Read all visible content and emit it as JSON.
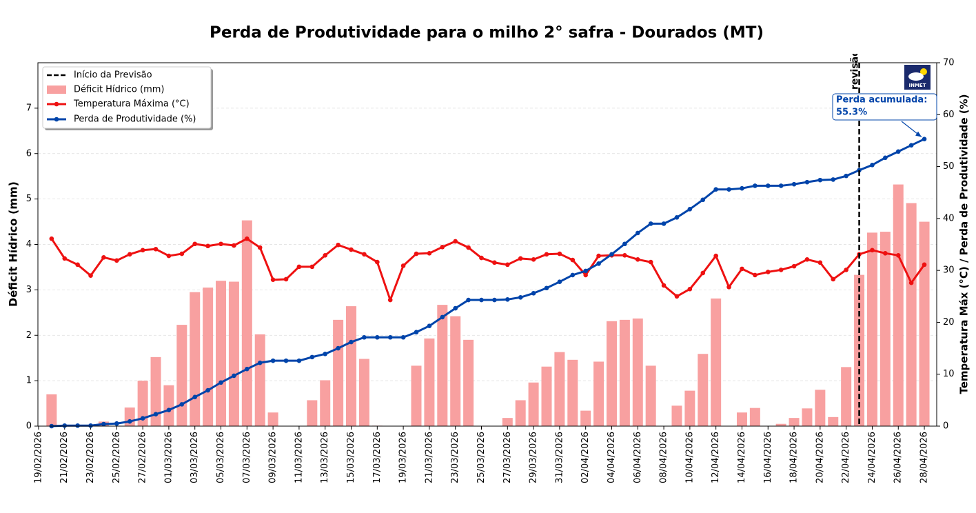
{
  "chart_data": {
    "type": "combo",
    "title": "Perda de Produtividade para o milho 2° safra - Dourados (MT)",
    "y_label": "Déficit Hídrico (mm)",
    "y2_label": "Temperatura Máx (°C) / Perda de Produtividade (%)",
    "categories": [
      "19/02/2026",
      null,
      "21/02/2026",
      null,
      "23/02/2026",
      null,
      "25/02/2026",
      null,
      "27/02/2026",
      null,
      "01/03/2026",
      null,
      "03/03/2026",
      null,
      "05/03/2026",
      null,
      "07/03/2026",
      null,
      "09/03/2026",
      null,
      "11/03/2026",
      null,
      "13/03/2026",
      null,
      "15/03/2026",
      null,
      "17/03/2026",
      null,
      "19/03/2026",
      null,
      "21/03/2026",
      null,
      "23/03/2026",
      null,
      "25/03/2026",
      null,
      "27/03/2026",
      null,
      "29/03/2026",
      null,
      "31/03/2026",
      null,
      "02/04/2026",
      null,
      "04/04/2026",
      null,
      "06/04/2026",
      null,
      "08/04/2026",
      null,
      "10/04/2026",
      null,
      "12/04/2026",
      null,
      "14/04/2026",
      null,
      "16/04/2026",
      null,
      "18/04/2026",
      null,
      "20/04/2026",
      null,
      "22/04/2026",
      null,
      "24/04/2026",
      null,
      "26/04/2026",
      null,
      "28/04/2026"
    ],
    "series": [
      {
        "name": "Déficit Hídrico (mm)",
        "type": "bar",
        "axis": "y",
        "color": "#f8a0a0",
        "values": [
          null,
          0.7,
          0,
          0,
          0.02,
          0.1,
          0,
          0.41,
          1.0,
          1.52,
          0.9,
          2.23,
          2.95,
          3.05,
          3.2,
          3.18,
          4.53,
          2.02,
          0.3,
          0,
          0,
          0.57,
          1.01,
          2.34,
          2.64,
          1.48,
          0.01,
          0,
          0,
          1.33,
          1.93,
          2.67,
          2.42,
          1.9,
          0,
          0,
          0.18,
          0.57,
          0.96,
          1.31,
          1.63,
          1.46,
          0.34,
          1.42,
          2.31,
          2.34,
          2.37,
          1.33,
          0,
          0.45,
          0.78,
          1.59,
          2.81,
          0,
          0.3,
          0.4,
          0,
          0.05,
          0.18,
          0.39,
          0.8,
          0.2,
          1.3,
          3.33,
          4.26,
          4.28,
          5.32,
          4.91,
          4.5
        ]
      },
      {
        "name": "Temperatura Máxima (°C)",
        "type": "line",
        "axis": "y2",
        "color": "#ee1111",
        "values": [
          null,
          36.1,
          32.3,
          31.1,
          29.0,
          32.5,
          31.9,
          33.1,
          33.9,
          34.1,
          32.8,
          33.2,
          35.1,
          34.7,
          35.1,
          34.8,
          36.1,
          34.4,
          28.2,
          28.3,
          30.7,
          30.7,
          32.9,
          34.9,
          34.0,
          33.1,
          31.6,
          24.3,
          30.9,
          33.2,
          33.3,
          34.5,
          35.6,
          34.4,
          32.4,
          31.5,
          31.1,
          32.3,
          32.1,
          33.1,
          33.2,
          32.0,
          29.1,
          32.8,
          32.9,
          32.9,
          32.1,
          31.6,
          27.1,
          25.0,
          26.4,
          29.5,
          32.8,
          26.8,
          30.3,
          29.1,
          29.7,
          30.1,
          30.8,
          32.1,
          31.5,
          28.3,
          30.1,
          33.1,
          33.9,
          33.3,
          32.9,
          27.6,
          31.1
        ]
      },
      {
        "name": "Perda de Produtividade (%)",
        "type": "line",
        "axis": "y2",
        "color": "#0044aa",
        "values": [
          null,
          0.0,
          0.1,
          0.1,
          0.1,
          0.4,
          0.5,
          0.9,
          1.5,
          2.3,
          3.1,
          4.2,
          5.6,
          6.9,
          8.4,
          9.7,
          11.0,
          12.2,
          12.6,
          12.6,
          12.6,
          13.3,
          13.9,
          15.0,
          16.2,
          17.1,
          17.1,
          17.1,
          17.1,
          18.1,
          19.3,
          21.0,
          22.7,
          24.3,
          24.3,
          24.3,
          24.4,
          24.8,
          25.6,
          26.6,
          27.8,
          29.1,
          29.9,
          31.3,
          33.1,
          35.1,
          37.2,
          39.0,
          39.0,
          40.2,
          41.8,
          43.6,
          45.6,
          45.6,
          45.8,
          46.3,
          46.3,
          46.3,
          46.6,
          47.0,
          47.4,
          47.5,
          48.2,
          49.3,
          50.3,
          51.7,
          52.9,
          54.1,
          55.3
        ]
      }
    ],
    "forecast": {
      "name": "Início da Previsão",
      "x": "23/04/2026",
      "label": "revisão"
    },
    "annotation": {
      "lines": [
        "Perda acumulada:",
        "55.3%"
      ]
    },
    "logo_text": "INMET",
    "ylim": [
      0,
      8
    ],
    "yticks": [
      0,
      1,
      2,
      3,
      4,
      5,
      6,
      7
    ],
    "y2lim": [
      0,
      70
    ],
    "y2ticks": [
      0,
      10,
      20,
      30,
      40,
      50,
      60,
      70
    ],
    "grid": true,
    "legend": "upper left"
  }
}
